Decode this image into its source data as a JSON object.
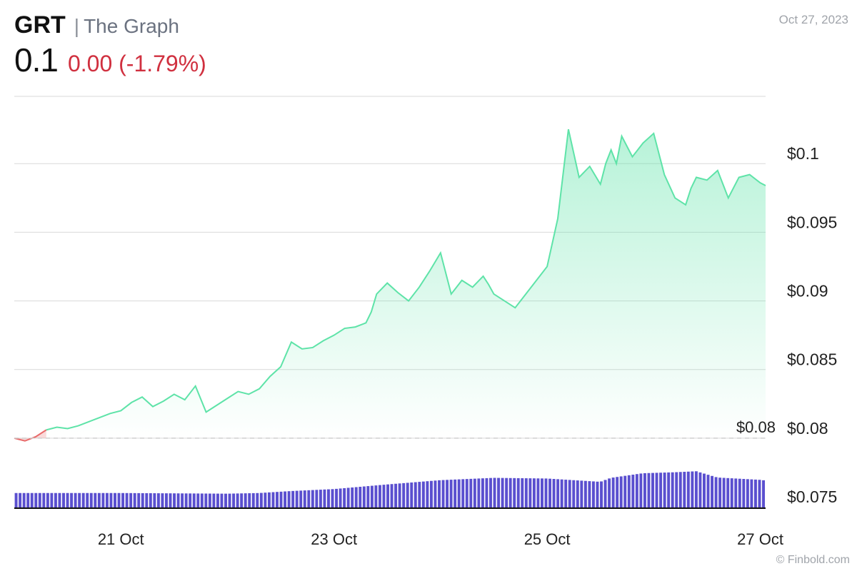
{
  "header": {
    "ticker": "GRT",
    "separator": "|",
    "name": "The Graph",
    "price": "0.1",
    "change": "0.00 (-1.79%)",
    "date": "Oct 27, 2023"
  },
  "attribution": "© Finbold.com",
  "colors": {
    "line_up": "#5ee3a8",
    "line_down": "#e86a6a",
    "change_text": "#d0303f",
    "volume": "#5a4fcf",
    "grid": "#d9d9d9",
    "axis": "#111111"
  },
  "chart_data": {
    "type": "area",
    "x_tick_labels": [
      "21 Oct",
      "23 Oct",
      "25 Oct",
      "27 Oct"
    ],
    "x_tick_positions_days": [
      21,
      23,
      25,
      27
    ],
    "x_range_days": [
      20.0,
      27.05
    ],
    "y_tick_labels": [
      "$0.1",
      "$0.095",
      "$0.09",
      "$0.085",
      "$0.08",
      "$0.075"
    ],
    "y_ticks": [
      0.1,
      0.095,
      0.09,
      0.085,
      0.08,
      0.075
    ],
    "ylim": [
      0.0749,
      0.1049
    ],
    "reference_line": {
      "value": 0.08,
      "label": "$0.08",
      "style": "dashed"
    },
    "price_series": {
      "x_days": [
        20.0,
        20.1,
        20.2,
        20.3,
        20.4,
        20.5,
        20.6,
        20.7,
        20.8,
        20.9,
        21.0,
        21.1,
        21.2,
        21.3,
        21.4,
        21.5,
        21.6,
        21.7,
        21.8,
        21.9,
        22.0,
        22.1,
        22.2,
        22.3,
        22.4,
        22.5,
        22.6,
        22.7,
        22.8,
        22.9,
        23.0,
        23.1,
        23.2,
        23.3,
        23.35,
        23.4,
        23.5,
        23.6,
        23.7,
        23.8,
        23.9,
        24.0,
        24.1,
        24.2,
        24.3,
        24.4,
        24.45,
        24.5,
        24.6,
        24.7,
        24.8,
        24.9,
        25.0,
        25.1,
        25.2,
        25.3,
        25.4,
        25.5,
        25.55,
        25.6,
        25.65,
        25.7,
        25.8,
        25.9,
        26.0,
        26.1,
        26.2,
        26.3,
        26.35,
        26.4,
        26.5,
        26.6,
        26.7,
        26.8,
        26.9,
        27.0,
        27.05
      ],
      "values": [
        0.08,
        0.0798,
        0.0801,
        0.0806,
        0.0808,
        0.0807,
        0.0809,
        0.0812,
        0.0815,
        0.0818,
        0.082,
        0.0826,
        0.083,
        0.0823,
        0.0827,
        0.0832,
        0.0828,
        0.0838,
        0.0819,
        0.0824,
        0.0829,
        0.0834,
        0.0832,
        0.0836,
        0.0845,
        0.0852,
        0.087,
        0.0865,
        0.0866,
        0.0871,
        0.0875,
        0.088,
        0.0881,
        0.0884,
        0.0892,
        0.0905,
        0.0913,
        0.0906,
        0.09,
        0.091,
        0.0922,
        0.0935,
        0.0905,
        0.0915,
        0.091,
        0.0918,
        0.0912,
        0.0905,
        0.09,
        0.0895,
        0.0905,
        0.0915,
        0.0925,
        0.096,
        0.1025,
        0.099,
        0.0998,
        0.0985,
        0.1,
        0.101,
        0.1,
        0.102,
        0.1005,
        0.1015,
        0.1022,
        0.0992,
        0.0975,
        0.097,
        0.0982,
        0.099,
        0.0988,
        0.0995,
        0.0975,
        0.099,
        0.0992,
        0.0986,
        0.0984
      ]
    },
    "volume_series": {
      "x_days": [
        20.0,
        21.0,
        22.0,
        22.3,
        22.6,
        23.0,
        23.5,
        24.0,
        24.5,
        25.0,
        25.5,
        25.6,
        25.9,
        26.2,
        26.4,
        26.6,
        27.0,
        27.05
      ],
      "relative_heights": [
        0.46,
        0.46,
        0.44,
        0.46,
        0.52,
        0.58,
        0.72,
        0.85,
        0.92,
        0.9,
        0.8,
        0.92,
        1.06,
        1.09,
        1.12,
        0.93,
        0.86,
        0.84
      ]
    }
  }
}
